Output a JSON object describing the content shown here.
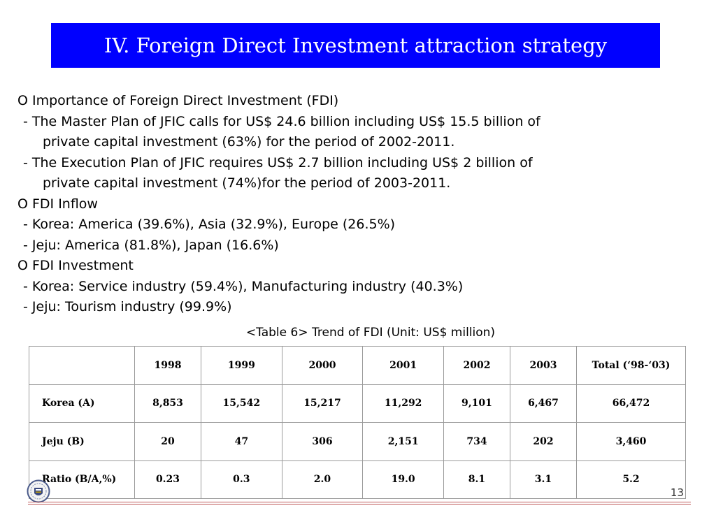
{
  "title": "IV. Foreign Direct Investment attraction strategy",
  "bullets": [
    {
      "level": 0,
      "text": "O Importance of Foreign Direct Investment (FDI)"
    },
    {
      "level": 1,
      "text": "- The Master Plan of JFIC calls for US$ 24.6 billion including US$ 15.5 billion of"
    },
    {
      "level": 2,
      "text": "private capital investment (63%) for the period of 2002-2011."
    },
    {
      "level": 1,
      "text": "- The Execution Plan of JFIC requires US$ 2.7 billion including US$ 2 billion of"
    },
    {
      "level": 2,
      "text": "private capital investment (74%)for the period of 2003-2011."
    },
    {
      "level": 0,
      "text": "O FDI Inflow"
    },
    {
      "level": 1,
      "text": "- Korea: America (39.6%), Asia (32.9%), Europe (26.5%)"
    },
    {
      "level": 1,
      "text": "- Jeju: America (81.8%), Japan (16.6%)"
    },
    {
      "level": 0,
      "text": "O FDI Investment"
    },
    {
      "level": 1,
      "text": "- Korea: Service industry (59.4%), Manufacturing industry (40.3%)"
    },
    {
      "level": 1,
      "text": "- Jeju: Tourism industry (99.9%)"
    }
  ],
  "table": {
    "caption": "<Table 6> Trend of FDI (Unit: US$ million)",
    "headers": [
      "",
      "1998",
      "1999",
      "2000",
      "2001",
      "2002",
      "2003",
      "Total (‘98-‘03)"
    ],
    "rows": [
      [
        "Korea (A)",
        "8,853",
        "15,542",
        "15,217",
        "11,292",
        "9,101",
        "6,467",
        "66,472"
      ],
      [
        "Jeju (B)",
        "20",
        "47",
        "306",
        "2,151",
        "734",
        "202",
        "3,460"
      ],
      [
        "Ratio (B/A,%)",
        "0.23",
        "0.3",
        "2.0",
        "19.0",
        "8.1",
        "3.1",
        "5.2"
      ]
    ]
  },
  "page_number": "13",
  "colors": {
    "title_bg": "#0000ff",
    "title_fg": "#ffffff",
    "footer_rule": "#c06060"
  },
  "logo_icon": "university-seal-icon"
}
